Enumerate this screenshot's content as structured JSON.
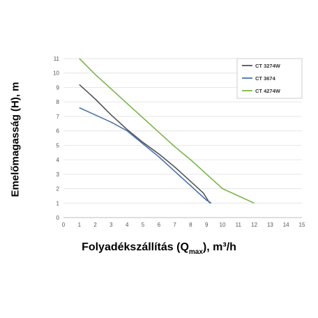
{
  "chart_data": {
    "type": "line",
    "xlabel_main": "Folyadékszállítás (Q",
    "xlabel_sub": "max",
    "xlabel_tail": "), m³/h",
    "ylabel": "Emelőmagasság (H), m",
    "xlim": [
      0,
      15
    ],
    "ylim": [
      0,
      11
    ],
    "xticks": [
      "0",
      "1",
      "2",
      "3",
      "4",
      "5",
      "6",
      "7",
      "8",
      "9",
      "10",
      "11",
      "12",
      "13",
      "14",
      "15"
    ],
    "yticks": [
      "0",
      "1",
      "2",
      "3",
      "4",
      "5",
      "6",
      "7",
      "8",
      "9",
      "10",
      "11"
    ],
    "grid": "horizontal",
    "legend_position": "top-right",
    "series": [
      {
        "name": "CT 3274W",
        "color": "#555555",
        "x": [
          1,
          2,
          3,
          4,
          5,
          6,
          7,
          8,
          8.8,
          9.2
        ],
        "y": [
          9.2,
          8.2,
          7.1,
          6.1,
          5.2,
          4.4,
          3.5,
          2.5,
          1.7,
          1.0
        ]
      },
      {
        "name": "CT 3674",
        "color": "#4a72b0",
        "x": [
          1,
          2,
          3,
          4,
          5,
          6,
          7,
          8,
          9,
          9.3
        ],
        "y": [
          7.6,
          7.1,
          6.6,
          6.0,
          5.1,
          4.2,
          3.2,
          2.2,
          1.2,
          1.0
        ]
      },
      {
        "name": "CT 4274W",
        "color": "#7ab648",
        "x": [
          1,
          2,
          3,
          4,
          5,
          6,
          7,
          8,
          9,
          10,
          11,
          12
        ],
        "y": [
          11.0,
          9.9,
          8.9,
          7.9,
          6.9,
          5.9,
          4.9,
          4.0,
          3.0,
          2.0,
          1.5,
          1.0
        ]
      }
    ]
  }
}
